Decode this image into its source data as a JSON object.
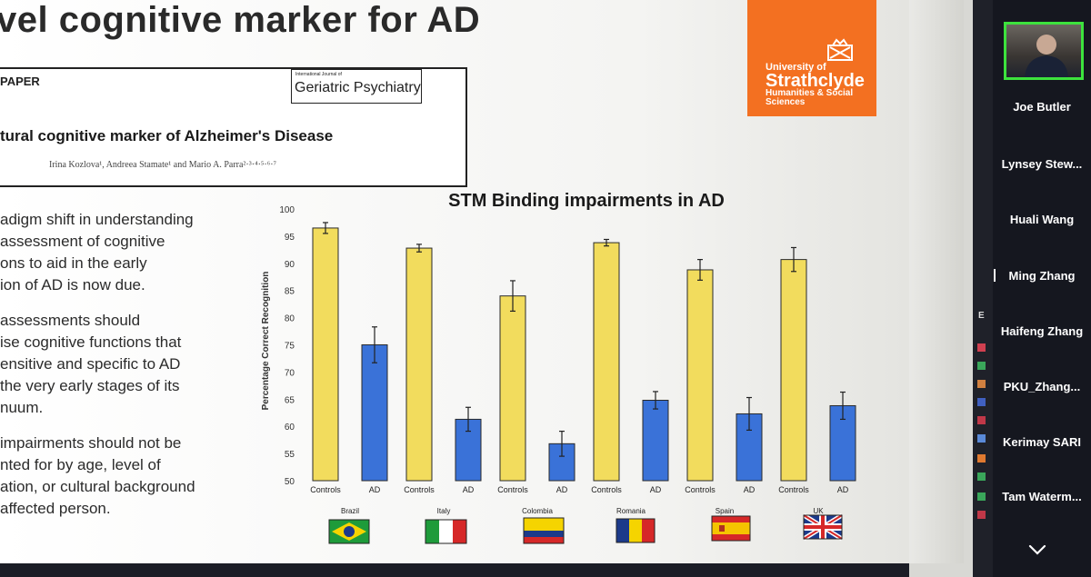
{
  "slide": {
    "title": "vel cognitive marker for AD",
    "logo": {
      "line1": "University of",
      "line2": "Strathclyde",
      "line3": "Humanities & Social Sciences"
    },
    "paper": {
      "label": "PAPER",
      "journal_small": "International Journal of",
      "journal_name": "Geriatric Psychiatry",
      "title": "tural cognitive marker of Alzheimer's Disease",
      "authors": "Irina Kozlova¹, Andreea Stamate¹ and Mario A. Parra²·³·⁴·⁵·⁶·⁷"
    },
    "bullets": [
      [
        "adigm shift in understanding",
        "assessment of cognitive",
        "ons to aid in the early",
        "ion of AD is now due."
      ],
      [
        "assessments should",
        "ise cognitive functions that",
        "ensitive and specific to AD",
        "the very early stages of its",
        "nuum."
      ],
      [
        "impairments should not be",
        "nted for by age, level of",
        "ation, or cultural background",
        "affected person."
      ]
    ]
  },
  "chart_data": {
    "type": "bar",
    "title": "STM Binding impairments in AD",
    "ylabel": "Percentage Correct Recognition",
    "ylim": [
      50,
      100
    ],
    "yticks": [
      50,
      55,
      60,
      65,
      70,
      75,
      80,
      85,
      90,
      95,
      100
    ],
    "countries": [
      "Brazil",
      "Italy",
      "Colombia",
      "Romania",
      "Spain",
      "UK"
    ],
    "groups": [
      "Controls",
      "AD"
    ],
    "series": [
      {
        "name": "Controls",
        "color": "#f2dc5d",
        "values": [
          96.5,
          92.8,
          84.0,
          93.8,
          88.8,
          90.7
        ],
        "errors": [
          1.0,
          0.7,
          2.8,
          0.6,
          1.9,
          2.2
        ]
      },
      {
        "name": "AD",
        "color": "#3a72d8",
        "values": [
          75.0,
          61.3,
          56.8,
          64.8,
          62.3,
          63.8
        ],
        "errors": [
          3.3,
          2.2,
          2.3,
          1.6,
          3.0,
          2.5
        ]
      }
    ],
    "grid": false
  },
  "participants": {
    "names": [
      "Joe Butler",
      "Lynsey Stew...",
      "Huali Wang",
      "Ming Zhang",
      "Haifeng Zhang",
      "PKU_Zhang...",
      "Kerimay SARI",
      "Tam Waterm..."
    ],
    "strip_letter": "E"
  }
}
